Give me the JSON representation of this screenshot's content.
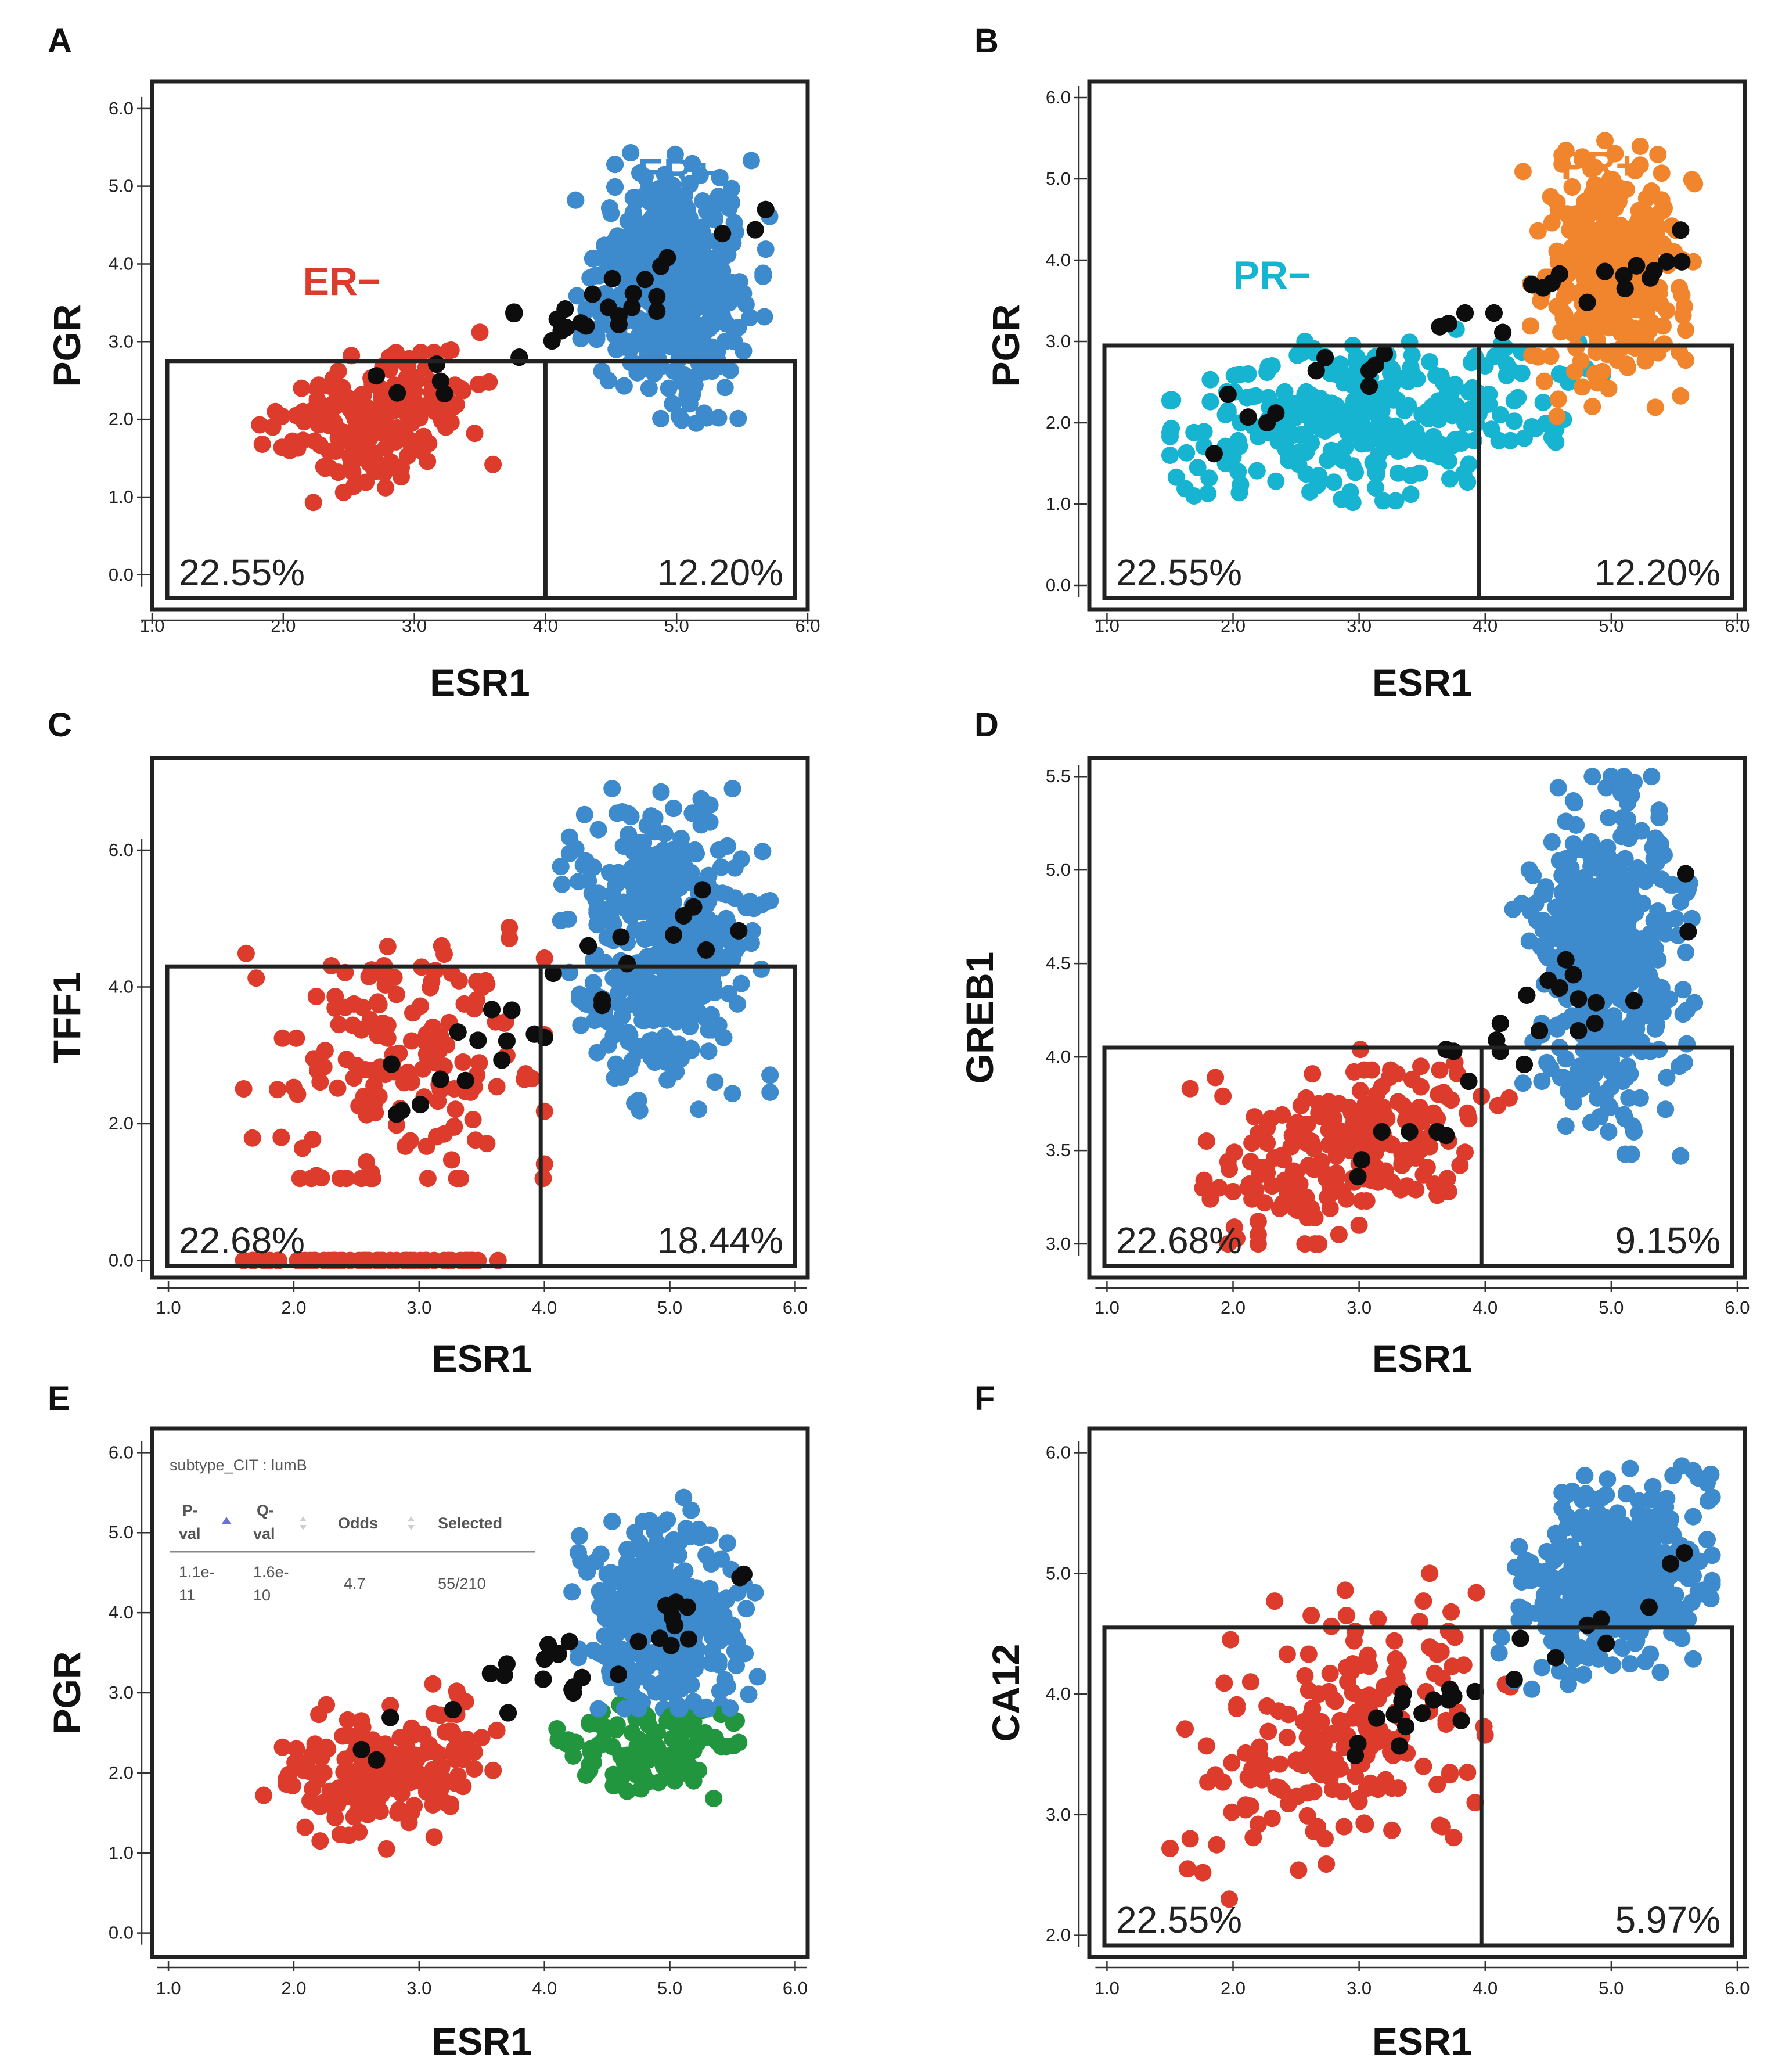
{
  "colors": {
    "red": "#dd3c2c",
    "blue": "#3d8acd",
    "black": "#0d0d0d",
    "orange": "#f0852d",
    "cyan": "#17b4d2",
    "green": "#22953f",
    "frame": "#222222"
  },
  "chart_data": [
    {
      "panel": "A",
      "type": "scatter",
      "xlabel": "ESR1",
      "ylabel": "PGR",
      "xlim": [
        1.0,
        6.0
      ],
      "ylim": [
        0.0,
        6.0
      ],
      "xticks": [
        "1.0",
        "2.0",
        "3.0",
        "4.0",
        "5.0",
        "6.0"
      ],
      "yticks": [
        "0.0",
        "1.0",
        "2.0",
        "3.0",
        "4.0",
        "5.0",
        "6.0"
      ],
      "gate": {
        "x_split": 4.0,
        "y_top": 2.75
      },
      "percent_labels": {
        "left": "22.55%",
        "right": "12.20%"
      },
      "group_labels": [
        {
          "text": "ER+",
          "color": "blue",
          "x": 4.7,
          "y": 5.0
        },
        {
          "text": "ER−",
          "color": "red",
          "x": 2.15,
          "y": 3.6
        }
      ],
      "series": [
        {
          "name": "ER-",
          "color": "red",
          "n": 190,
          "cx": 2.75,
          "cy": 2.05,
          "sx": 0.4,
          "sy": 0.4,
          "rot": 0.3,
          "xr": [
            1.55,
            4.1
          ],
          "yr": [
            0.5,
            3.8
          ]
        },
        {
          "name": "ER+",
          "color": "blue",
          "n": 440,
          "cx": 4.95,
          "cy": 3.65,
          "sx": 0.3,
          "sy": 0.72,
          "rot": 0.0,
          "xr": [
            3.85,
            5.8
          ],
          "yr": [
            1.5,
            5.5
          ]
        },
        {
          "name": "selected",
          "color": "black",
          "n": 30,
          "cx": 4.4,
          "cy": 3.0,
          "sx": 1.0,
          "sy": 1.0,
          "rot": 0.0,
          "xr": [
            2.5,
            5.7
          ],
          "yr": [
            1.6,
            4.9
          ]
        }
      ],
      "overlay_colors": [
        "blue"
      ]
    },
    {
      "panel": "B",
      "type": "scatter",
      "xlabel": "ESR1",
      "ylabel": "PGR",
      "xlim": [
        1.0,
        6.0
      ],
      "ylim": [
        0.0,
        6.0
      ],
      "xticks": [
        "1.0",
        "2.0",
        "3.0",
        "4.0",
        "5.0",
        "6.0"
      ],
      "yticks": [
        "0.0",
        "1.0",
        "2.0",
        "3.0",
        "4.0",
        "5.0",
        "6.0"
      ],
      "gate": {
        "x_split": 3.95,
        "y_top": 2.95
      },
      "percent_labels": {
        "left": "22.55%",
        "right": "12.20%"
      },
      "group_labels": [
        {
          "text": "PR+",
          "color": "orange",
          "x": 4.6,
          "y": 5.0
        },
        {
          "text": "PR−",
          "color": "cyan",
          "x": 2.0,
          "y": 3.65
        }
      ],
      "series": [
        {
          "name": "PR-",
          "color": "cyan",
          "n": 330,
          "cx": 3.05,
          "cy": 2.05,
          "sx": 0.75,
          "sy": 0.45,
          "rot": 0.15,
          "xr": [
            1.5,
            5.7
          ],
          "yr": [
            0.5,
            3.8
          ]
        },
        {
          "name": "PR+",
          "color": "orange",
          "n": 340,
          "cx": 5.0,
          "cy": 3.8,
          "sx": 0.3,
          "sy": 0.68,
          "rot": 0.0,
          "xr": [
            3.8,
            5.8
          ],
          "yr": [
            1.6,
            5.5
          ]
        },
        {
          "name": "selected",
          "color": "black",
          "n": 30,
          "cx": 4.4,
          "cy": 3.0,
          "sx": 1.0,
          "sy": 1.0,
          "rot": 0.0,
          "xr": [
            1.8,
            5.6
          ],
          "yr": [
            1.4,
            4.9
          ]
        }
      ],
      "overlay_colors": []
    },
    {
      "panel": "C",
      "type": "scatter",
      "xlabel": "ESR1",
      "ylabel": "TFF1",
      "xlim": [
        1.0,
        6.0
      ],
      "ylim": [
        0.0,
        7.0
      ],
      "xticks": [
        "1.0",
        "2.0",
        "3.0",
        "4.0",
        "5.0",
        "6.0"
      ],
      "yticks": [
        "0.0",
        "2.0",
        "4.0",
        "6.0"
      ],
      "gate": {
        "x_split": 3.97,
        "y_top": 4.3
      },
      "percent_labels": {
        "left": "22.68%",
        "right": "18.44%"
      },
      "group_labels": [],
      "series": [
        {
          "name": "ER-",
          "color": "red",
          "n": 160,
          "cx": 2.85,
          "cy": 2.8,
          "sx": 0.55,
          "sy": 1.05,
          "rot": 0.0,
          "xr": [
            1.6,
            4.0
          ],
          "yr": [
            1.2,
            5.8
          ]
        },
        {
          "name": "ER- zero",
          "color": "red",
          "n": 60,
          "cx": 2.7,
          "cy": 0.0,
          "sx": 0.6,
          "sy": 0.0,
          "rot": 0.0,
          "xr": [
            1.6,
            3.8
          ],
          "yr": [
            0.0,
            0.0
          ]
        },
        {
          "name": "ER+",
          "color": "blue",
          "n": 420,
          "cx": 4.95,
          "cy": 4.6,
          "sx": 0.35,
          "sy": 1.0,
          "rot": 0.0,
          "xr": [
            3.8,
            5.8
          ],
          "yr": [
            1.6,
            6.9
          ]
        },
        {
          "name": "selected",
          "color": "black",
          "n": 26,
          "cx": 4.3,
          "cy": 3.8,
          "sx": 1.0,
          "sy": 1.4,
          "rot": 0.0,
          "xr": [
            2.7,
            5.6
          ],
          "yr": [
            1.8,
            6.0
          ]
        }
      ],
      "overlay_colors": [
        "blue"
      ]
    },
    {
      "panel": "D",
      "type": "scatter",
      "xlabel": "ESR1",
      "ylabel": "GREB1",
      "xlim": [
        1.0,
        6.0
      ],
      "ylim": [
        2.95,
        5.5
      ],
      "xticks": [
        "1.0",
        "2.0",
        "3.0",
        "4.0",
        "5.0",
        "6.0"
      ],
      "yticks": [
        "3.0",
        "3.5",
        "4.0",
        "4.5",
        "5.0",
        "5.5"
      ],
      "gate": {
        "x_split": 3.97,
        "y_top": 4.05
      },
      "percent_labels": {
        "left": "22.68%",
        "right": "9.15%"
      },
      "group_labels": [],
      "series": [
        {
          "name": "ER-",
          "color": "red",
          "n": 220,
          "cx": 2.9,
          "cy": 3.5,
          "sx": 0.5,
          "sy": 0.23,
          "rot": 0.15,
          "xr": [
            1.6,
            4.2
          ],
          "yr": [
            3.0,
            4.6
          ]
        },
        {
          "name": "ER+",
          "color": "blue",
          "n": 440,
          "cx": 4.95,
          "cy": 4.55,
          "sx": 0.3,
          "sy": 0.45,
          "rot": 0.0,
          "xr": [
            3.8,
            5.7
          ],
          "yr": [
            3.35,
            5.5
          ]
        },
        {
          "name": "selected",
          "color": "black",
          "n": 26,
          "cx": 4.3,
          "cy": 4.3,
          "sx": 1.0,
          "sy": 0.7,
          "rot": 0.0,
          "xr": [
            2.9,
            5.7
          ],
          "yr": [
            3.1,
            5.1
          ]
        }
      ],
      "overlay_colors": [
        "blue"
      ]
    },
    {
      "panel": "E",
      "type": "scatter",
      "xlabel": "ESR1",
      "ylabel": "PGR",
      "xlim": [
        1.0,
        6.0
      ],
      "ylim": [
        0.0,
        6.0
      ],
      "xticks": [
        "1.0",
        "2.0",
        "3.0",
        "4.0",
        "5.0",
        "6.0"
      ],
      "yticks": [
        "0.0",
        "1.0",
        "2.0",
        "3.0",
        "4.0",
        "5.0",
        "6.0"
      ],
      "gate": null,
      "percent_labels": null,
      "group_labels": [],
      "series": [
        {
          "name": "ER-",
          "color": "red",
          "n": 190,
          "cx": 2.75,
          "cy": 2.05,
          "sx": 0.4,
          "sy": 0.4,
          "rot": 0.3,
          "xr": [
            1.55,
            4.1
          ],
          "yr": [
            0.5,
            3.8
          ]
        },
        {
          "name": "ER+",
          "color": "blue",
          "n": 360,
          "cx": 4.95,
          "cy": 3.9,
          "sx": 0.3,
          "sy": 0.6,
          "rot": 0.0,
          "xr": [
            3.85,
            5.8
          ],
          "yr": [
            2.8,
            5.5
          ]
        },
        {
          "name": "lumB selected",
          "color": "green",
          "n": 110,
          "cx": 4.85,
          "cy": 2.3,
          "sx": 0.4,
          "sy": 0.3,
          "rot": 0.0,
          "xr": [
            4.0,
            5.8
          ],
          "yr": [
            1.0,
            2.85
          ]
        },
        {
          "name": "selected",
          "color": "black",
          "n": 30,
          "cx": 4.4,
          "cy": 3.0,
          "sx": 1.0,
          "sy": 1.0,
          "rot": 0.0,
          "xr": [
            2.5,
            5.7
          ],
          "yr": [
            1.6,
            4.9
          ]
        }
      ],
      "overlay_colors": [
        "blue"
      ],
      "inset_table": {
        "title": "subtype_CIT : lumB",
        "columns": [
          "P-val",
          "Q-val",
          "Odds",
          "Selected"
        ],
        "rows": [
          [
            "1.1e-11",
            "1.6e-10",
            "4.7",
            "55/210"
          ]
        ]
      }
    },
    {
      "panel": "F",
      "type": "scatter",
      "xlabel": "ESR1",
      "ylabel": "CA12",
      "xlim": [
        1.0,
        6.0
      ],
      "ylim": [
        1.9,
        6.1
      ],
      "xticks": [
        "1.0",
        "2.0",
        "3.0",
        "4.0",
        "5.0",
        "6.0"
      ],
      "yticks": [
        "2.0",
        "3.0",
        "4.0",
        "5.0",
        "6.0"
      ],
      "gate": {
        "x_split": 3.97,
        "y_top": 4.55
      },
      "percent_labels": {
        "left": "22.55%",
        "right": "5.97%"
      },
      "group_labels": [],
      "series": [
        {
          "name": "ER-",
          "color": "red",
          "n": 210,
          "cx": 2.9,
          "cy": 3.7,
          "sx": 0.55,
          "sy": 0.5,
          "rot": 0.35,
          "xr": [
            1.5,
            4.2
          ],
          "yr": [
            2.1,
            5.0
          ]
        },
        {
          "name": "ER+",
          "color": "blue",
          "n": 420,
          "cx": 5.0,
          "cy": 4.95,
          "sx": 0.35,
          "sy": 0.38,
          "rot": 0.2,
          "xr": [
            3.85,
            5.8
          ],
          "yr": [
            2.9,
            5.95
          ]
        },
        {
          "name": "selected",
          "color": "black",
          "n": 24,
          "cx": 4.3,
          "cy": 4.5,
          "sx": 1.0,
          "sy": 0.7,
          "rot": 0.0,
          "xr": [
            2.8,
            5.7
          ],
          "yr": [
            3.1,
            5.5
          ]
        }
      ],
      "overlay_colors": [
        "blue"
      ]
    }
  ]
}
